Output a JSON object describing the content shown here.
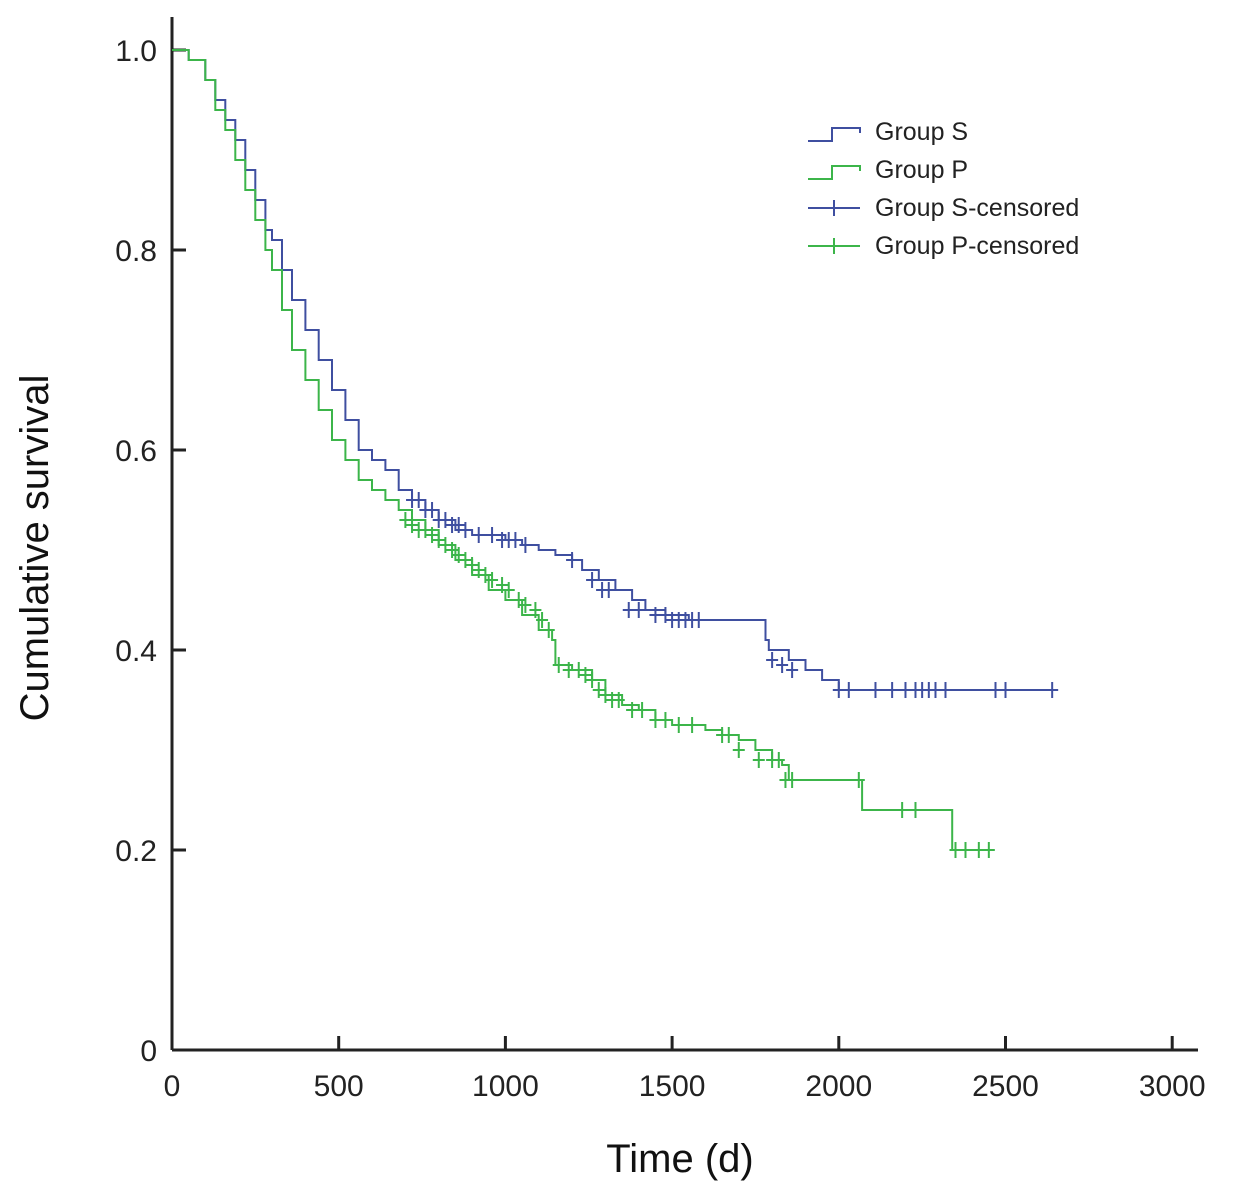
{
  "chart_data": {
    "type": "line",
    "subtype": "kaplan-meier step",
    "xlabel": "Time (d)",
    "ylabel": "Cumulative survival",
    "xlim": [
      0,
      3100
    ],
    "ylim": [
      0,
      1.02
    ],
    "x_ticks": [
      0,
      500,
      1000,
      1500,
      2000,
      2500,
      3000
    ],
    "y_ticks": [
      0,
      0.2,
      0.4,
      0.6,
      0.8,
      1.0
    ],
    "x_tick_labels": [
      "0",
      "500",
      "1000",
      "1500",
      "2000",
      "2500",
      "3000"
    ],
    "y_tick_labels": [
      "0",
      "0.2",
      "0.4",
      "0.6",
      "0.8",
      "1.0"
    ],
    "grid": false,
    "legend_position": "top-right",
    "legend": [
      "Group S",
      "Group P",
      "Group S-censored",
      "Group P-censored"
    ],
    "series": [
      {
        "name": "Group S",
        "color": "#3f4fa0",
        "x": [
          0,
          50,
          100,
          130,
          160,
          190,
          220,
          250,
          280,
          300,
          330,
          360,
          400,
          440,
          480,
          520,
          560,
          600,
          640,
          680,
          720,
          760,
          800,
          850,
          900,
          1000,
          1050,
          1100,
          1150,
          1200,
          1230,
          1280,
          1330,
          1380,
          1420,
          1480,
          1550,
          1600,
          1700,
          1780,
          1790,
          1850,
          1900,
          1950,
          2000,
          2640
        ],
        "y": [
          1.0,
          0.99,
          0.97,
          0.95,
          0.93,
          0.91,
          0.88,
          0.85,
          0.82,
          0.81,
          0.78,
          0.75,
          0.72,
          0.69,
          0.66,
          0.63,
          0.6,
          0.59,
          0.58,
          0.56,
          0.55,
          0.54,
          0.53,
          0.52,
          0.515,
          0.51,
          0.505,
          0.5,
          0.495,
          0.49,
          0.48,
          0.47,
          0.46,
          0.45,
          0.44,
          0.435,
          0.43,
          0.43,
          0.43,
          0.41,
          0.4,
          0.39,
          0.38,
          0.37,
          0.36,
          0.36
        ],
        "censored_x": [
          720,
          740,
          760,
          780,
          800,
          820,
          840,
          860,
          880,
          920,
          960,
          990,
          1010,
          1030,
          1060,
          1200,
          1260,
          1290,
          1310,
          1370,
          1400,
          1450,
          1480,
          1500,
          1520,
          1540,
          1560,
          1580,
          1800,
          1830,
          1860,
          2000,
          2030,
          2110,
          2160,
          2200,
          2230,
          2250,
          2270,
          2290,
          2320,
          2470,
          2500,
          2640
        ],
        "censored_y": [
          0.55,
          0.55,
          0.54,
          0.54,
          0.53,
          0.53,
          0.525,
          0.525,
          0.52,
          0.515,
          0.515,
          0.51,
          0.51,
          0.51,
          0.505,
          0.49,
          0.47,
          0.46,
          0.46,
          0.44,
          0.44,
          0.435,
          0.435,
          0.43,
          0.43,
          0.43,
          0.43,
          0.43,
          0.39,
          0.385,
          0.38,
          0.36,
          0.36,
          0.36,
          0.36,
          0.36,
          0.36,
          0.36,
          0.36,
          0.36,
          0.36,
          0.36,
          0.36,
          0.36
        ]
      },
      {
        "name": "Group P",
        "color": "#3cb54a",
        "x": [
          0,
          50,
          100,
          130,
          160,
          190,
          220,
          250,
          280,
          300,
          330,
          360,
          400,
          440,
          480,
          520,
          560,
          600,
          640,
          680,
          720,
          760,
          800,
          850,
          900,
          950,
          1000,
          1050,
          1100,
          1140,
          1150,
          1200,
          1260,
          1300,
          1350,
          1400,
          1450,
          1500,
          1550,
          1600,
          1650,
          1700,
          1750,
          1800,
          1830,
          1850,
          2000,
          2060,
          2070,
          2250,
          2330,
          2340,
          2450
        ],
        "y": [
          1.0,
          0.99,
          0.97,
          0.94,
          0.92,
          0.89,
          0.86,
          0.83,
          0.8,
          0.78,
          0.74,
          0.7,
          0.67,
          0.64,
          0.61,
          0.59,
          0.57,
          0.56,
          0.55,
          0.54,
          0.53,
          0.52,
          0.505,
          0.49,
          0.475,
          0.46,
          0.45,
          0.435,
          0.42,
          0.41,
          0.385,
          0.38,
          0.37,
          0.355,
          0.345,
          0.34,
          0.33,
          0.325,
          0.325,
          0.32,
          0.315,
          0.31,
          0.3,
          0.29,
          0.285,
          0.27,
          0.27,
          0.27,
          0.24,
          0.24,
          0.24,
          0.2,
          0.2
        ],
        "censored_x": [
          700,
          720,
          740,
          760,
          780,
          800,
          820,
          840,
          860,
          880,
          900,
          920,
          940,
          960,
          990,
          1010,
          1040,
          1060,
          1090,
          1110,
          1130,
          1160,
          1190,
          1220,
          1240,
          1260,
          1280,
          1300,
          1320,
          1340,
          1380,
          1410,
          1450,
          1480,
          1520,
          1560,
          1650,
          1670,
          1700,
          1760,
          1800,
          1820,
          1840,
          1860,
          2060,
          2190,
          2230,
          2350,
          2380,
          2420,
          2450
        ],
        "censored_y": [
          0.53,
          0.525,
          0.52,
          0.52,
          0.515,
          0.51,
          0.505,
          0.5,
          0.495,
          0.49,
          0.485,
          0.48,
          0.475,
          0.47,
          0.465,
          0.46,
          0.45,
          0.445,
          0.44,
          0.43,
          0.42,
          0.385,
          0.38,
          0.38,
          0.375,
          0.37,
          0.36,
          0.355,
          0.35,
          0.35,
          0.34,
          0.34,
          0.33,
          0.33,
          0.325,
          0.325,
          0.315,
          0.315,
          0.3,
          0.29,
          0.29,
          0.29,
          0.27,
          0.27,
          0.27,
          0.24,
          0.24,
          0.2,
          0.2,
          0.2,
          0.2
        ]
      }
    ]
  }
}
